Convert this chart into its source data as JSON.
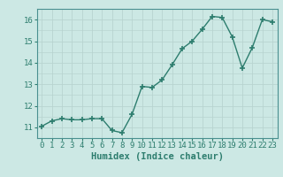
{
  "x": [
    0,
    1,
    2,
    3,
    4,
    5,
    6,
    7,
    8,
    9,
    10,
    11,
    12,
    13,
    14,
    15,
    16,
    17,
    18,
    19,
    20,
    21,
    22,
    23
  ],
  "y": [
    11.05,
    11.3,
    11.4,
    11.35,
    11.35,
    11.4,
    11.4,
    10.85,
    10.75,
    11.6,
    12.9,
    12.85,
    13.2,
    13.9,
    14.65,
    15.0,
    15.55,
    16.15,
    16.1,
    15.2,
    13.75,
    14.7,
    16.0,
    15.9
  ],
  "line_color": "#2d7d6e",
  "marker": "+",
  "marker_size": 4,
  "bg_color": "#cce8e4",
  "grid_color": "#b8d4d0",
  "xlabel": "Humidex (Indice chaleur)",
  "xlim": [
    -0.5,
    23.5
  ],
  "ylim": [
    10.5,
    16.5
  ],
  "yticks": [
    11,
    12,
    13,
    14,
    15,
    16
  ],
  "xticks": [
    0,
    1,
    2,
    3,
    4,
    5,
    6,
    7,
    8,
    9,
    10,
    11,
    12,
    13,
    14,
    15,
    16,
    17,
    18,
    19,
    20,
    21,
    22,
    23
  ],
  "tick_fontsize": 6.5,
  "xlabel_fontsize": 7.5,
  "line_width": 1.0,
  "marker_color": "#2d7d6e"
}
